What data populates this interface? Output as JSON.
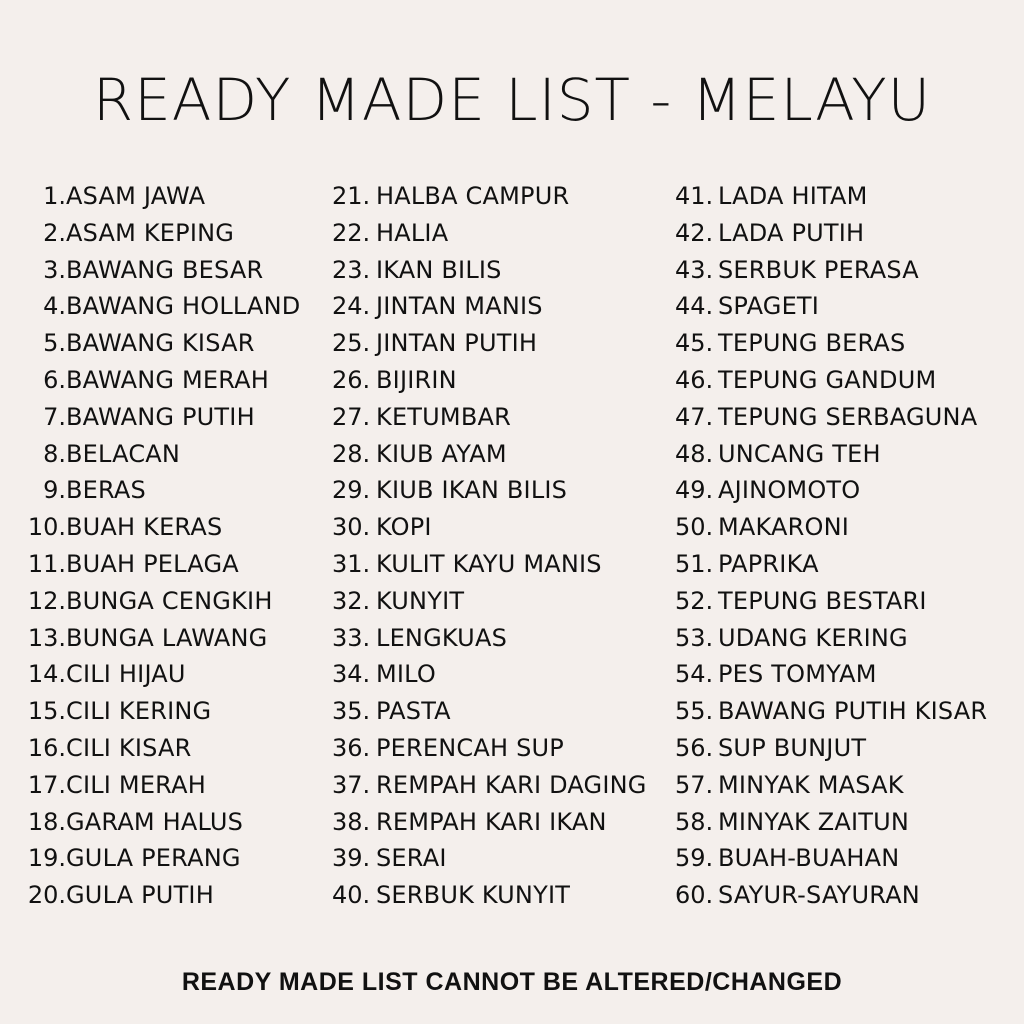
{
  "title": "READY MADE LIST - MELAYU",
  "columns": [
    [
      {
        "num": "1.",
        "text": "ASAM JAWA"
      },
      {
        "num": "2.",
        "text": "ASAM KEPING"
      },
      {
        "num": "3.",
        "text": "BAWANG BESAR"
      },
      {
        "num": "4.",
        "text": "BAWANG HOLLAND"
      },
      {
        "num": "5.",
        "text": "BAWANG KISAR"
      },
      {
        "num": "6.",
        "text": "BAWANG MERAH"
      },
      {
        "num": "7.",
        "text": "BAWANG PUTIH"
      },
      {
        "num": "8.",
        "text": "BELACAN"
      },
      {
        "num": "9.",
        "text": "BERAS"
      },
      {
        "num": "10.",
        "text": "BUAH KERAS"
      },
      {
        "num": "11.",
        "text": "BUAH PELAGA"
      },
      {
        "num": "12.",
        "text": "BUNGA CENGKIH"
      },
      {
        "num": "13.",
        "text": "BUNGA LAWANG"
      },
      {
        "num": "14.",
        "text": "CILI HIJAU"
      },
      {
        "num": "15.",
        "text": "CILI KERING"
      },
      {
        "num": "16.",
        "text": "CILI KISAR"
      },
      {
        "num": "17.",
        "text": "CILI MERAH"
      },
      {
        "num": "18.",
        "text": "GARAM HALUS"
      },
      {
        "num": "19.",
        "text": "GULA PERANG"
      },
      {
        "num": "20.",
        "text": "GULA PUTIH"
      }
    ],
    [
      {
        "num": "21.",
        "text": "HALBA CAMPUR"
      },
      {
        "num": "22.",
        "text": "HALIA"
      },
      {
        "num": "23.",
        "text": "IKAN BILIS"
      },
      {
        "num": "24.",
        "text": "JINTAN MANIS"
      },
      {
        "num": "25.",
        "text": "JINTAN PUTIH"
      },
      {
        "num": "26.",
        "text": "BIJIRIN"
      },
      {
        "num": "27.",
        "text": "KETUMBAR"
      },
      {
        "num": "28.",
        "text": "KIUB AYAM"
      },
      {
        "num": "29.",
        "text": "KIUB IKAN BILIS"
      },
      {
        "num": "30.",
        "text": "KOPI"
      },
      {
        "num": "31.",
        "text": "KULIT KAYU MANIS"
      },
      {
        "num": "32.",
        "text": "KUNYIT"
      },
      {
        "num": "33.",
        "text": "LENGKUAS"
      },
      {
        "num": "34.",
        "text": "MILO"
      },
      {
        "num": "35.",
        "text": "PASTA"
      },
      {
        "num": "36.",
        "text": "PERENCAH SUP"
      },
      {
        "num": "37.",
        "text": "REMPAH KARI DAGING"
      },
      {
        "num": "38.",
        "text": "REMPAH KARI IKAN"
      },
      {
        "num": "39.",
        "text": "SERAI"
      },
      {
        "num": "40.",
        "text": "SERBUK KUNYIT"
      }
    ],
    [
      {
        "num": "41.",
        "text": "LADA HITAM"
      },
      {
        "num": "42.",
        "text": "LADA PUTIH"
      },
      {
        "num": "43.",
        "text": "SERBUK PERASA"
      },
      {
        "num": "44.",
        "text": "SPAGETI"
      },
      {
        "num": "45.",
        "text": "TEPUNG BERAS"
      },
      {
        "num": "46.",
        "text": "TEPUNG GANDUM"
      },
      {
        "num": "47.",
        "text": "TEPUNG SERBAGUNA"
      },
      {
        "num": "48.",
        "text": "UNCANG TEH"
      },
      {
        "num": "49.",
        "text": "AJINOMOTO"
      },
      {
        "num": "50.",
        "text": "MAKARONI"
      },
      {
        "num": "51.",
        "text": "PAPRIKA"
      },
      {
        "num": "52.",
        "text": "TEPUNG BESTARI"
      },
      {
        "num": "53.",
        "text": "UDANG KERING"
      },
      {
        "num": "54.",
        "text": "PES TOMYAM"
      },
      {
        "num": "55.",
        "text": "BAWANG PUTIH KISAR"
      },
      {
        "num": "56.",
        "text": "SUP BUNJUT"
      },
      {
        "num": "57.",
        "text": "MINYAK MASAK"
      },
      {
        "num": "58.",
        "text": "MINYAK ZAITUN"
      },
      {
        "num": "59.",
        "text": "BUAH-BUAHAN"
      },
      {
        "num": "60.",
        "text": "SAYUR-SAYURAN"
      }
    ]
  ],
  "footer": "READY MADE LIST CANNOT BE ALTERED/CHANGED",
  "colors": {
    "background": "#f4efec",
    "text": "#111111"
  }
}
